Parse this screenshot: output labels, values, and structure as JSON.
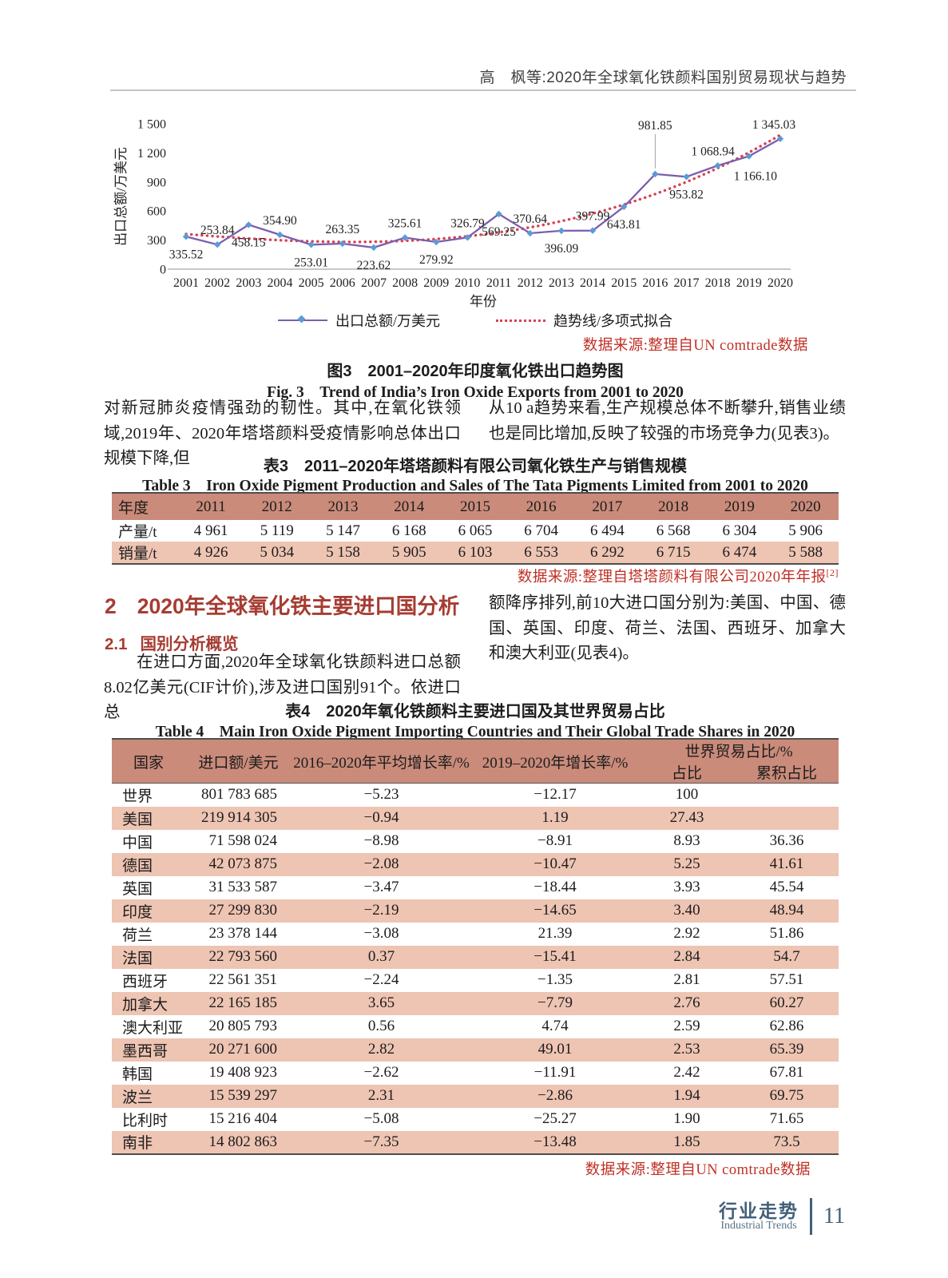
{
  "page": {
    "header_title": "高　枫等:2020年全球氧化铁颜料国别贸易现状与趋势",
    "footer": {
      "cn": "行业走势",
      "en": "Industrial Trends",
      "page_number": "11"
    }
  },
  "colors": {
    "accent-red": "#a63c32",
    "source-red": "#c03026",
    "table-header": "#ca8b7a",
    "table-row-alt": "#eec4b3",
    "line-purple": "#7b5ead",
    "marker-blue": "#5b9bd5",
    "trend-red": "#d64351",
    "footer-slate": "#42607a"
  },
  "chart_data": {
    "type": "line",
    "x": [
      2001,
      2002,
      2003,
      2004,
      2005,
      2006,
      2007,
      2008,
      2009,
      2010,
      2011,
      2012,
      2013,
      2014,
      2015,
      2016,
      2017,
      2018,
      2019,
      2020
    ],
    "series": [
      {
        "name": "出口总额/万美元",
        "values": [
          335.52,
          253.84,
          458.15,
          354.9,
          253.01,
          263.35,
          223.62,
          325.61,
          279.92,
          326.79,
          569.25,
          370.64,
          396.09,
          397.99,
          643.81,
          981.85,
          953.82,
          1068.94,
          1166.1,
          1345.03
        ],
        "color": "#7b5ead",
        "marker_color": "#5b9bd5"
      },
      {
        "name": "趋势线/多项式拟合",
        "style": "dotted",
        "fit": "polynomial-3",
        "color": "#d64351"
      }
    ],
    "data_labels": [
      "335.52",
      "253.84",
      "458.15",
      "354.90",
      "253.01",
      "263.35",
      "223.62",
      "325.61",
      "279.92",
      "326.79",
      "569.25",
      "370.64",
      "396.09",
      "397.99",
      "643.81",
      "981.85",
      "953.82",
      "1 068.94",
      "1 166.10",
      "1 345.03"
    ],
    "ylabel": "出口总额/万美元",
    "xlabel": "年份",
    "ylim": [
      0,
      1500
    ],
    "ytick_labels": [
      "0",
      "300",
      "600",
      "900",
      "1 200",
      "1 500"
    ],
    "legend": [
      "出口总额/万美元",
      "趋势线/多项式拟合"
    ],
    "legend_position": "bottom",
    "grid": false,
    "source": "数据来源:整理自UN comtrade数据",
    "caption_cn": "图3　2001–2020年印度氧化铁出口趋势图",
    "caption_en": "Fig. 3　Trend of India’s Iron Oxide Exports from 2001 to 2020"
  },
  "body": {
    "p1_left": "对新冠肺炎疫情强劲的韧性。其中,在氧化铁领域,2019年、2020年塔塔颜料受疫情影响总体出口规模下降,但",
    "p1_right": "从10 a趋势来看,生产规模总体不断攀升,销售业绩也是同比增加,反映了较强的市场竞争力(见表3)。",
    "p2_left": "在进口方面,2020年全球氧化铁颜料进口总额8.02亿美元(CIF计价),涉及进口国别91个。依进口总",
    "p2_right": "额降序排列,前10大进口国分别为:美国、中国、德国、英国、印度、荷兰、法国、西班牙、加拿大和澳大利亚(见表4)。"
  },
  "sections": {
    "s2_num": "2",
    "s2_title": "2020年全球氧化铁主要进口国分析",
    "s21_num": "2.1",
    "s21_title": "国别分析概览"
  },
  "table3": {
    "caption_cn": "表3　2011–2020年塔塔颜料有限公司氧化铁生产与销售规模",
    "caption_en": "Table 3　Iron Oxide Pigment Production and Sales of The Tata Pigments Limited from 2001 to 2020",
    "columns": [
      "年度",
      "2011",
      "2012",
      "2013",
      "2014",
      "2015",
      "2016",
      "2017",
      "2018",
      "2019",
      "2020"
    ],
    "rows": [
      [
        "产量/t",
        "4 961",
        "5 119",
        "5 147",
        "6 168",
        "6 065",
        "6 704",
        "6 494",
        "6 568",
        "6 304",
        "5 906"
      ],
      [
        "销量/t",
        "4 926",
        "5 034",
        "5 158",
        "5 905",
        "6 103",
        "6 553",
        "6 292",
        "6 715",
        "6 474",
        "5 588"
      ]
    ],
    "source": "数据来源:整理自塔塔颜料有限公司2020年年报",
    "source_sup": "[2]"
  },
  "table4": {
    "caption_cn": "表4　2020年氧化铁颜料主要进口国及其世界贸易占比",
    "caption_en": "Table 4　Main Iron Oxide Pigment Importing Countries and Their Global Trade Shares in 2020",
    "headers": {
      "country": "国家",
      "import": "进口额/美元",
      "avg_growth": "2016–2020年平均增长率/%",
      "yoy_growth": "2019–2020年增长率/%",
      "world_share": "世界贸易占比/%",
      "share": "占比",
      "cum_share": "累积占比"
    },
    "rows": [
      [
        "世界",
        "801 783 685",
        "−5.23",
        "−12.17",
        "100",
        ""
      ],
      [
        "美国",
        "219 914 305",
        "−0.94",
        "1.19",
        "27.43",
        ""
      ],
      [
        "中国",
        "71 598 024",
        "−8.98",
        "−8.91",
        "8.93",
        "36.36"
      ],
      [
        "德国",
        "42 073 875",
        "−2.08",
        "−10.47",
        "5.25",
        "41.61"
      ],
      [
        "英国",
        "31 533 587",
        "−3.47",
        "−18.44",
        "3.93",
        "45.54"
      ],
      [
        "印度",
        "27 299 830",
        "−2.19",
        "−14.65",
        "3.40",
        "48.94"
      ],
      [
        "荷兰",
        "23 378 144",
        "−3.08",
        "21.39",
        "2.92",
        "51.86"
      ],
      [
        "法国",
        "22 793 560",
        "0.37",
        "−15.41",
        "2.84",
        "54.7"
      ],
      [
        "西班牙",
        "22 561 351",
        "−2.24",
        "−1.35",
        "2.81",
        "57.51"
      ],
      [
        "加拿大",
        "22 165 185",
        "3.65",
        "−7.79",
        "2.76",
        "60.27"
      ],
      [
        "澳大利亚",
        "20 805 793",
        "0.56",
        "4.74",
        "2.59",
        "62.86"
      ],
      [
        "墨西哥",
        "20 271 600",
        "2.82",
        "49.01",
        "2.53",
        "65.39"
      ],
      [
        "韩国",
        "19 408 923",
        "−2.62",
        "−11.91",
        "2.42",
        "67.81"
      ],
      [
        "波兰",
        "15 539 297",
        "2.31",
        "−2.86",
        "1.94",
        "69.75"
      ],
      [
        "比利时",
        "15 216 404",
        "−5.08",
        "−25.27",
        "1.90",
        "71.65"
      ],
      [
        "南非",
        "14 802 863",
        "−7.35",
        "−13.48",
        "1.85",
        "73.5"
      ]
    ],
    "source": "数据来源:整理自UN comtrade数据"
  }
}
